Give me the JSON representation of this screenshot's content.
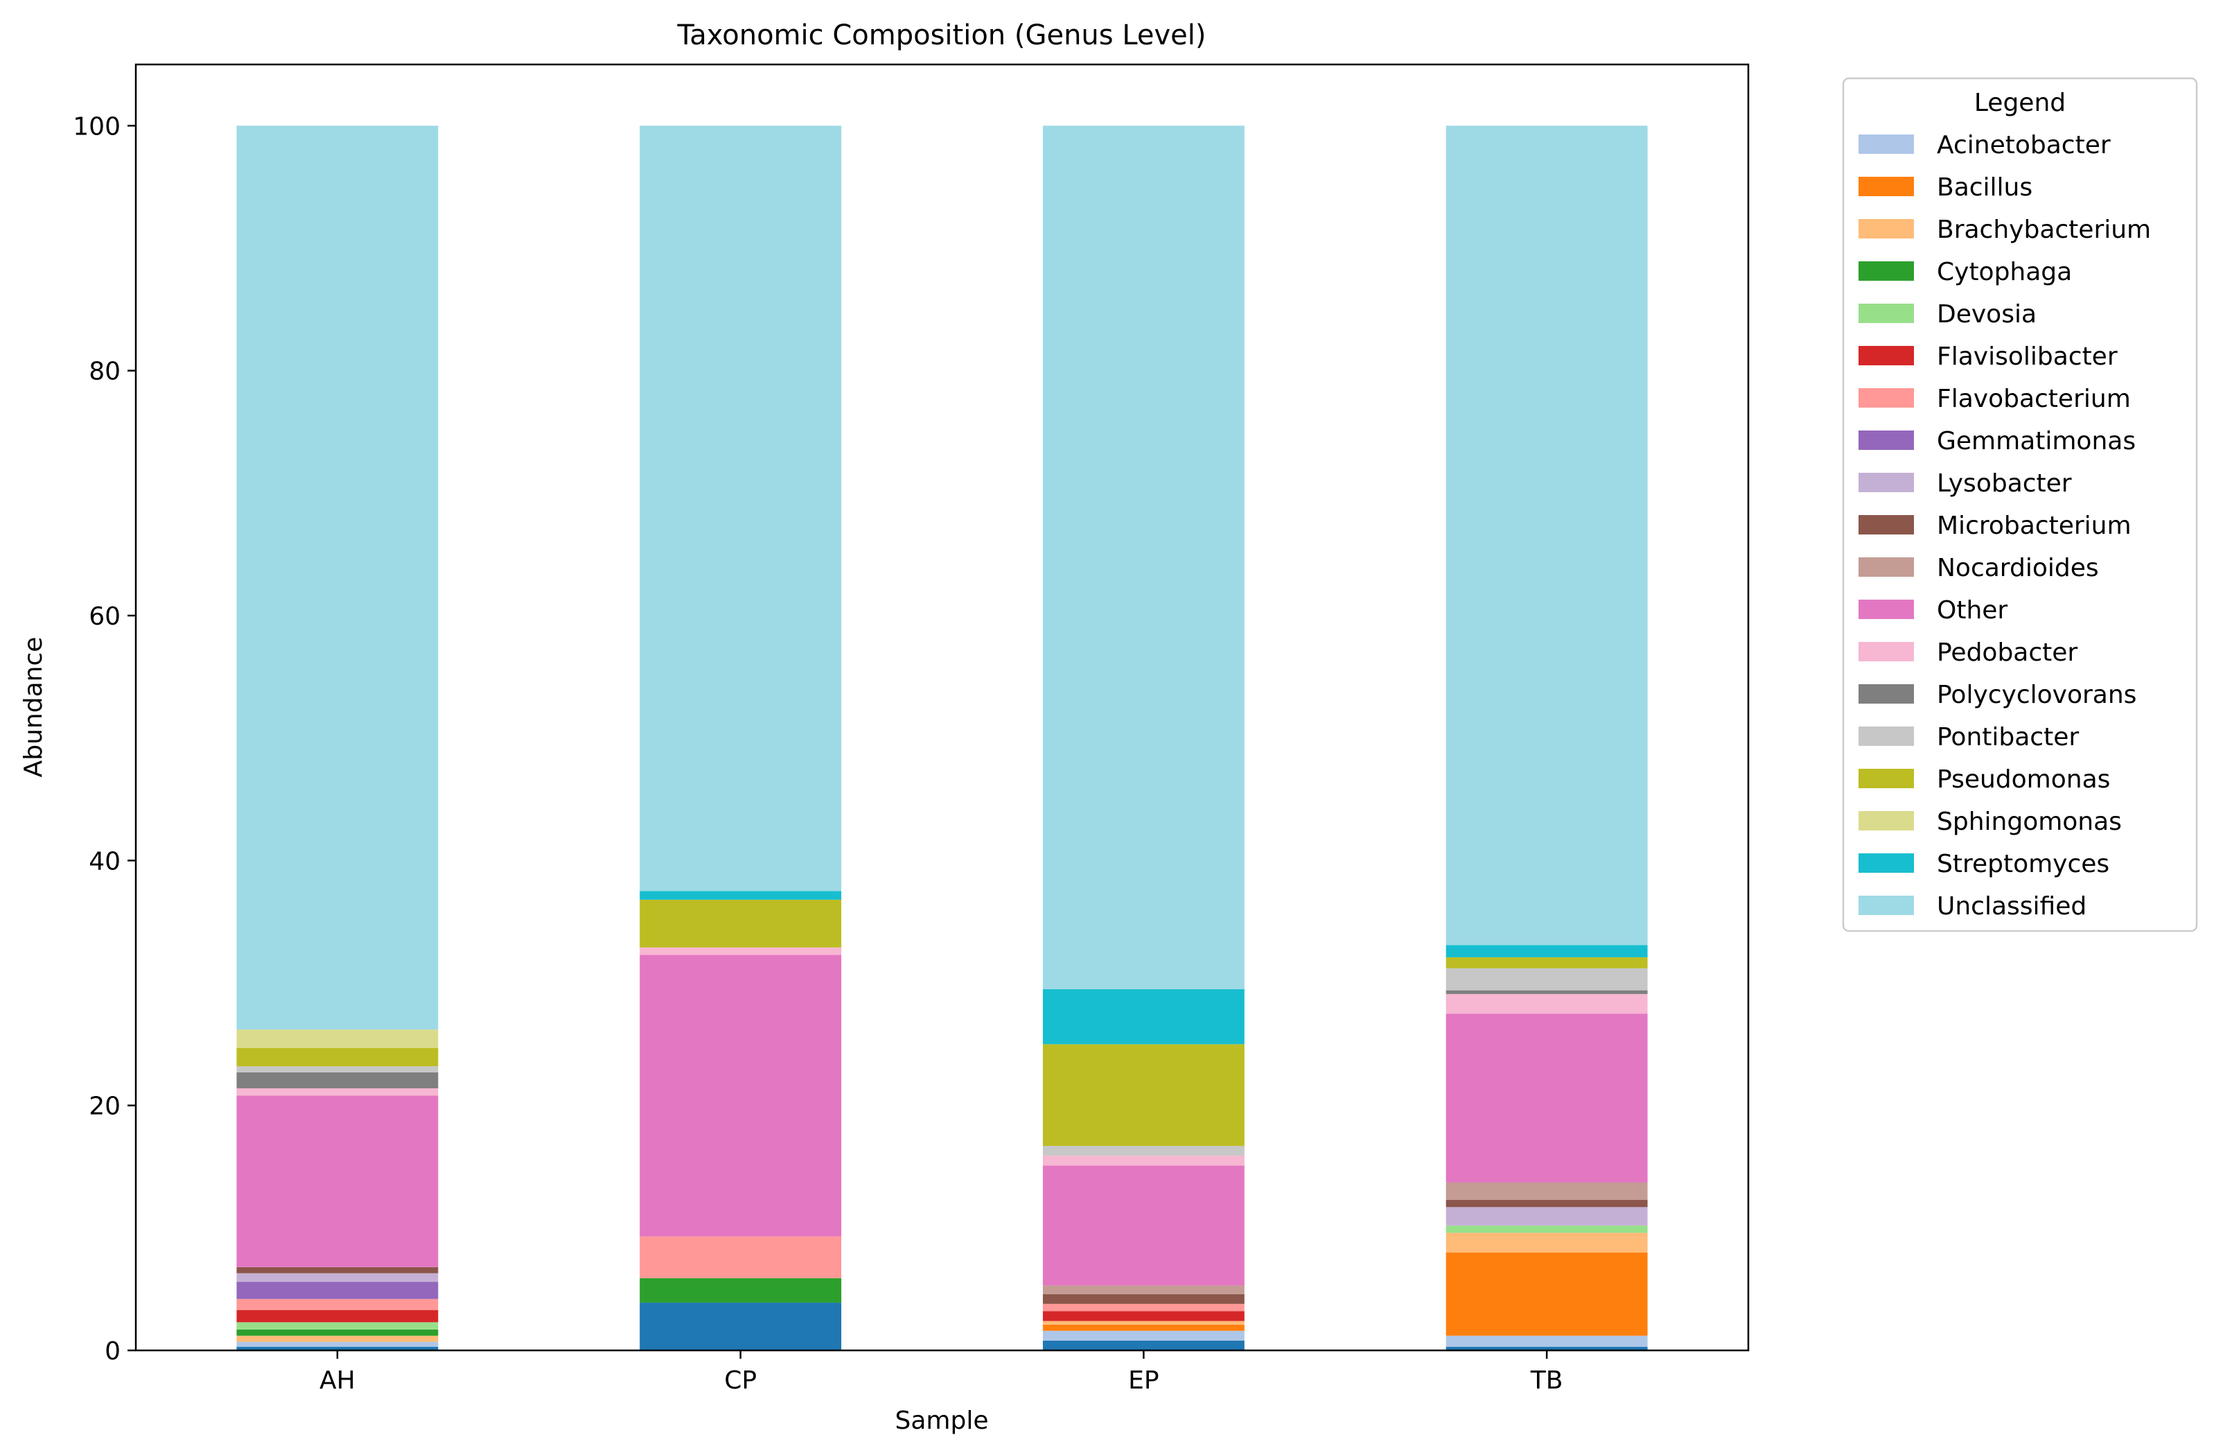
{
  "chart_data": {
    "type": "bar",
    "stacked": true,
    "title": "Taxonomic Composition (Genus Level)",
    "xlabel": "Sample",
    "ylabel": "Abundance",
    "ylim": [
      0,
      105
    ],
    "yticks": [
      0,
      20,
      40,
      60,
      80,
      100
    ],
    "grid": false,
    "legend": {
      "title": "Legend",
      "placement": "outside-top-right"
    },
    "categories": [
      "AH",
      "CP",
      "EP",
      "TB"
    ],
    "series": [
      {
        "name": "",
        "color": "#1f77b4",
        "values": [
          0.3,
          3.9,
          0.8,
          0.3
        ]
      },
      {
        "name": "Acinetobacter",
        "color": "#aec7e8",
        "values": [
          0.4,
          0.0,
          0.8,
          0.9
        ]
      },
      {
        "name": "Bacillus",
        "color": "#ff7f0e",
        "values": [
          0.0,
          0.0,
          0.5,
          6.8
        ]
      },
      {
        "name": "Brachybacterium",
        "color": "#ffbb78",
        "values": [
          0.5,
          0.0,
          0.3,
          1.6
        ]
      },
      {
        "name": "Cytophaga",
        "color": "#2ca02c",
        "values": [
          0.5,
          2.0,
          0.0,
          0.0
        ]
      },
      {
        "name": "Devosia",
        "color": "#98df8a",
        "values": [
          0.6,
          0.0,
          0.0,
          0.6
        ]
      },
      {
        "name": "Flavisolibacter",
        "color": "#d62728",
        "values": [
          1.0,
          0.0,
          0.8,
          0.0
        ]
      },
      {
        "name": "Flavobacterium",
        "color": "#ff9896",
        "values": [
          0.9,
          3.4,
          0.6,
          0.0
        ]
      },
      {
        "name": "Gemmatimonas",
        "color": "#9467bd",
        "values": [
          1.4,
          0.0,
          0.0,
          0.0
        ]
      },
      {
        "name": "Lysobacter",
        "color": "#c5b0d5",
        "values": [
          0.7,
          0.0,
          0.0,
          1.5
        ]
      },
      {
        "name": "Microbacterium",
        "color": "#8c564b",
        "values": [
          0.5,
          0.0,
          0.8,
          0.6
        ]
      },
      {
        "name": "Nocardioides",
        "color": "#c49c94",
        "values": [
          0.0,
          0.0,
          0.7,
          1.4
        ]
      },
      {
        "name": "Other",
        "color": "#e377c2",
        "values": [
          14.0,
          23.0,
          9.8,
          13.8
        ]
      },
      {
        "name": "Pedobacter",
        "color": "#f7b6d2",
        "values": [
          0.6,
          0.6,
          0.8,
          1.6
        ]
      },
      {
        "name": "Polycyclovorans",
        "color": "#7f7f7f",
        "values": [
          1.3,
          0.0,
          0.0,
          0.3
        ]
      },
      {
        "name": "Pontibacter",
        "color": "#c7c7c7",
        "values": [
          0.5,
          0.0,
          0.8,
          1.8
        ]
      },
      {
        "name": "Pseudomonas",
        "color": "#bcbd22",
        "values": [
          1.5,
          3.9,
          8.3,
          0.9
        ]
      },
      {
        "name": "Sphingomonas",
        "color": "#dbdb8d",
        "values": [
          1.5,
          0.0,
          0.0,
          0.0
        ]
      },
      {
        "name": "Streptomyces",
        "color": "#17becf",
        "values": [
          0.0,
          0.7,
          4.5,
          1.0
        ]
      },
      {
        "name": "Unclassified",
        "color": "#9edae5",
        "values": [
          73.8,
          62.5,
          70.5,
          66.9
        ]
      }
    ]
  }
}
